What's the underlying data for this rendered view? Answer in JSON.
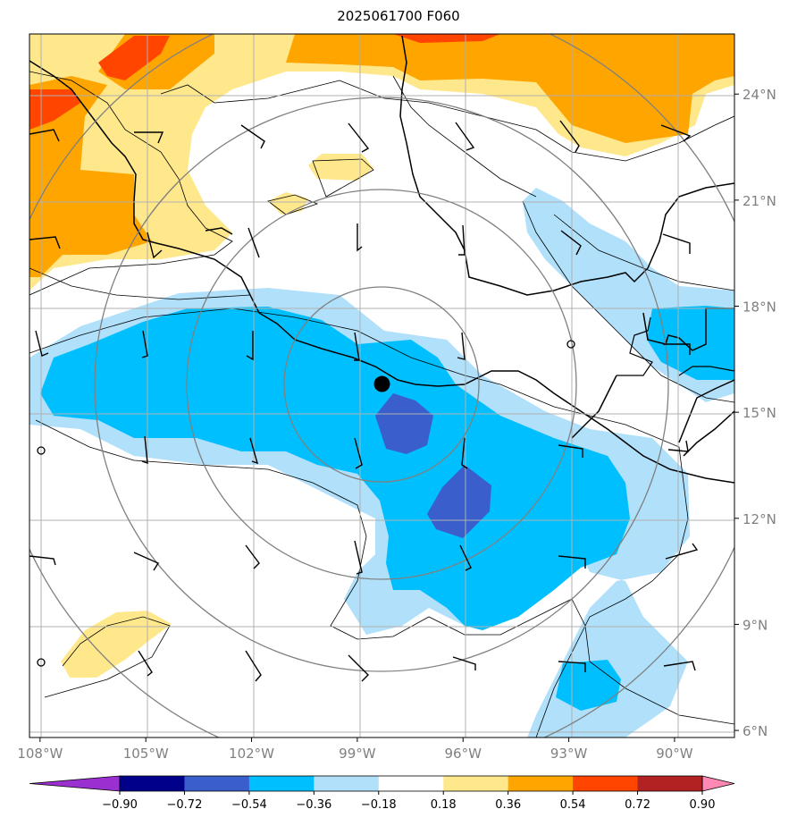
{
  "title": "2025061700 F060",
  "map": {
    "lon_range": [
      -108.3,
      -88.3
    ],
    "lat_range": [
      5.8,
      25.7
    ],
    "lon_ticks": [
      {
        "value": -108,
        "label": "108°W"
      },
      {
        "value": -105,
        "label": "105°W"
      },
      {
        "value": -102,
        "label": "102°W"
      },
      {
        "value": -99,
        "label": "99°W"
      },
      {
        "value": -96,
        "label": "96°W"
      },
      {
        "value": -93,
        "label": "93°W"
      },
      {
        "value": -90,
        "label": "90°W"
      }
    ],
    "lat_ticks": [
      {
        "value": 6,
        "label": "6°N"
      },
      {
        "value": 9,
        "label": "9°N"
      },
      {
        "value": 12,
        "label": "12°N"
      },
      {
        "value": 15,
        "label": "15°N"
      },
      {
        "value": 18,
        "label": "18°N"
      },
      {
        "value": 21,
        "label": "21°N"
      },
      {
        "value": 24,
        "label": "24°N"
      }
    ],
    "center_marker": {
      "lon": -98.3,
      "lat": 15.8
    },
    "range_rings_deg": [
      2.75,
      5.5,
      8.25,
      11.0
    ]
  },
  "colorbar": {
    "labels": [
      "−0.90",
      "−0.72",
      "−0.54",
      "−0.36",
      "−0.18",
      "0.18",
      "0.36",
      "0.54",
      "0.72",
      "0.90"
    ],
    "colors": [
      "#9b30d0",
      "#00008b",
      "#3a5fcd",
      "#00bfff",
      "#b0e0fa",
      "#ffffff",
      "#ffe88c",
      "#ffa500",
      "#ff4500",
      "#b22222",
      "#ff88b4"
    ]
  }
}
